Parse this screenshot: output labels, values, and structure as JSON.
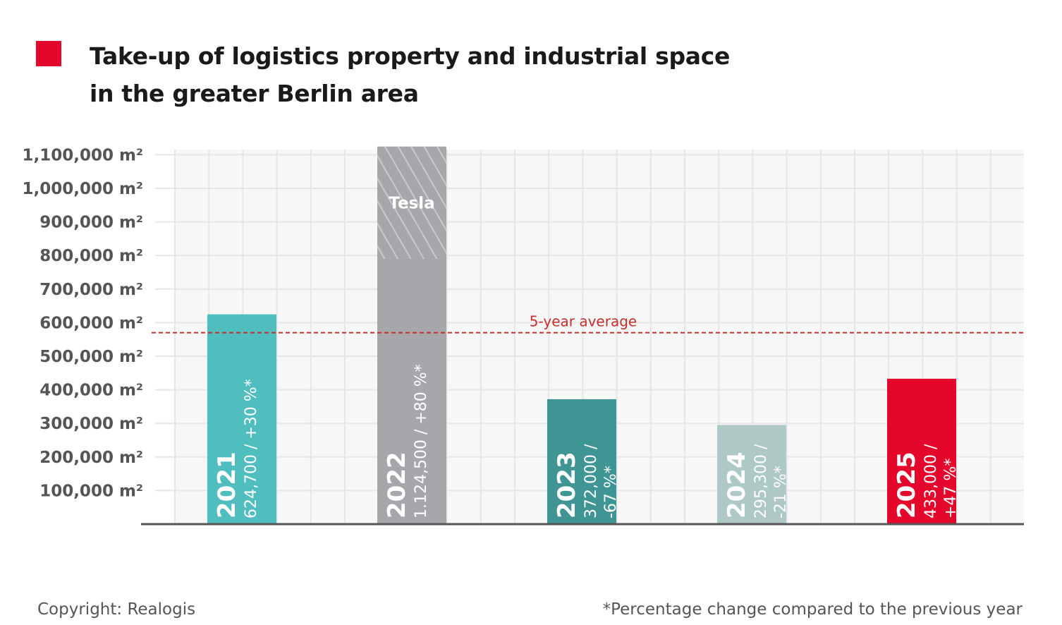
{
  "header": {
    "title_line1": "Take-up of logistics property and industrial space",
    "title_line2": "in the greater Berlin area",
    "marker_color": "#e4062b"
  },
  "footer": {
    "copyright": "Copyright: Realogis",
    "note": "*Percentage change compared to the previous year"
  },
  "chart_data": {
    "type": "bar",
    "title": "Take-up of logistics property and industrial space in the greater Berlin area",
    "ylim": [
      0,
      1100000
    ],
    "y_ticks": [
      100000,
      200000,
      300000,
      400000,
      500000,
      600000,
      700000,
      800000,
      900000,
      1000000,
      1100000
    ],
    "y_tick_labels": [
      "100,000 m²",
      "200,000 m²",
      "300,000 m²",
      "400,000 m²",
      "500,000 m²",
      "600,000 m²",
      "700,000 m²",
      "800,000 m²",
      "900,000 m²",
      "1,000,000 m²",
      "1,100,000 m²"
    ],
    "grid": true,
    "categories": [
      "2021",
      "2022",
      "2023",
      "2024",
      "2025"
    ],
    "values": [
      624700,
      1124500,
      372000,
      295300,
      433000
    ],
    "change_labels": [
      "624,700 / +30 %*",
      "1.124,500 / +80 %*",
      "372,000 / -67 %*",
      "295,300 / -21 %*",
      "433,000 / +47 %*"
    ],
    "label_lines": [
      [
        "624,700 / +30 %*"
      ],
      [
        "1.124,500 / +80 %*"
      ],
      [
        "372,000 /",
        "-67 %*"
      ],
      [
        "295,300 /",
        "-21 %*"
      ],
      [
        "433,000 /",
        "+47 %*"
      ]
    ],
    "colors": [
      "#50bdbf",
      "#a7a6ab",
      "#3f9593",
      "#aec8c6",
      "#e4062b"
    ],
    "stacked_segment": {
      "category": "2022",
      "label": "Tesla",
      "from": 790000,
      "to": 1124500,
      "pattern": "diagonal-hatch"
    },
    "reference_line": {
      "label": "5-year average",
      "value": 570000,
      "color": "#c4302b",
      "style": "dashed"
    }
  }
}
